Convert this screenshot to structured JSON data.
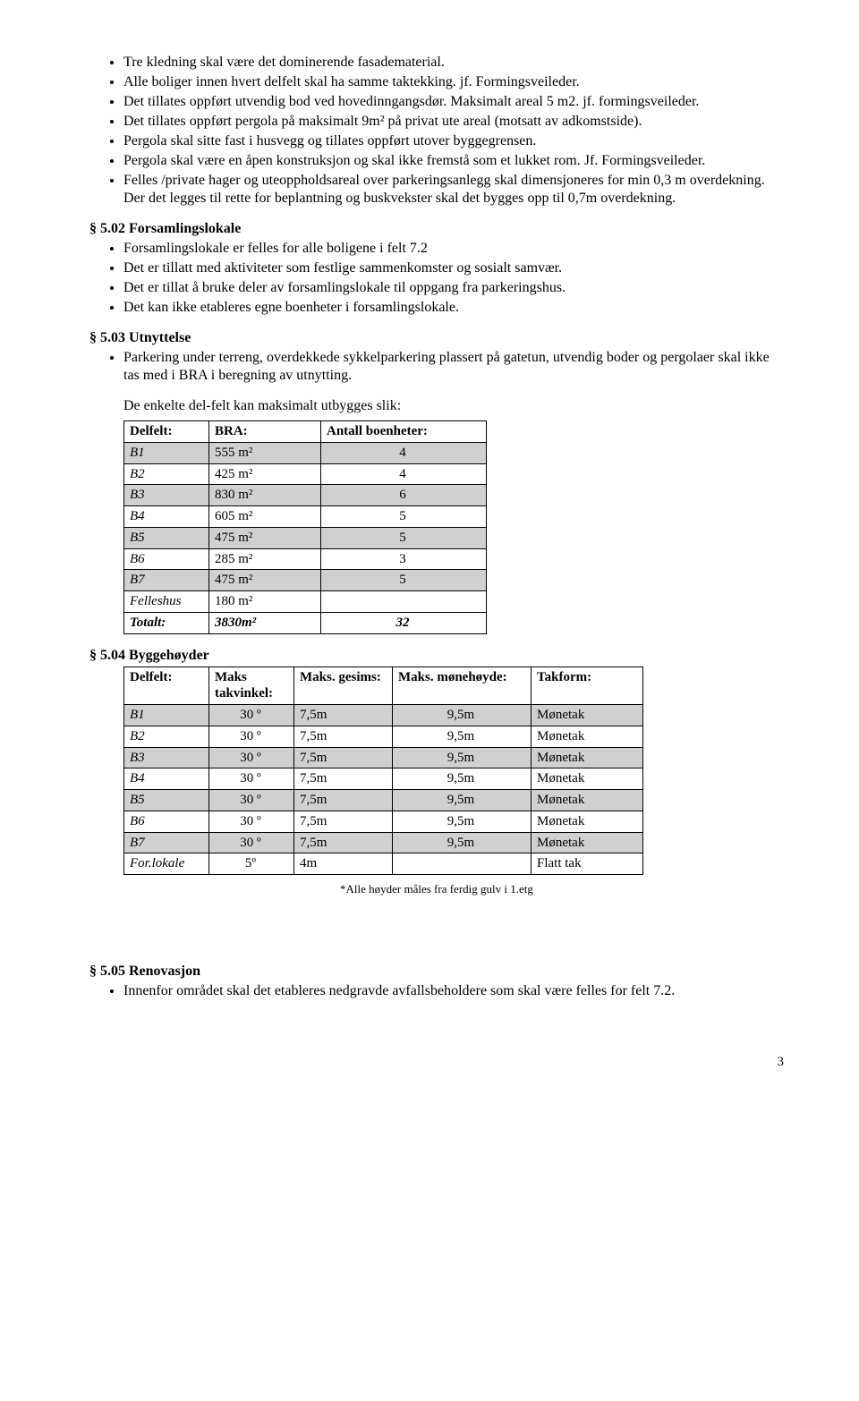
{
  "top_bullets": [
    "Tre kledning skal være det dominerende fasadematerial.",
    "Alle boliger innen hvert delfelt skal ha samme taktekking. jf. Formingsveileder.",
    "Det tillates oppført utvendig bod ved hovedinngangsdør. Maksimalt areal 5 m2. jf. formingsveileder.",
    "Det tillates oppført pergola på maksimalt 9m² på privat ute areal (motsatt av adkomstside).",
    "Pergola skal sitte fast i husvegg og tillates oppført utover byggegrensen.",
    "Pergola skal være en åpen konstruksjon og skal ikke fremstå som et lukket rom. Jf. Formingsveileder.",
    "Felles /private hager og uteoppholdsareal over parkeringsanlegg skal dimensjoneres for min 0,3 m overdekning. Der det legges til rette for beplantning og buskvekster skal det bygges opp til 0,7m overdekning."
  ],
  "s502": {
    "head": "§ 5.02 Forsamlingslokale",
    "bullets": [
      "Forsamlingslokale er felles for alle boligene i felt 7.2",
      "Det er tillatt med aktiviteter som festlige sammenkomster og sosialt samvær.",
      "Det er tillat å bruke deler av forsamlingslokale til oppgang fra parkeringshus.",
      "Det kan ikke etableres egne boenheter i forsamlingslokale."
    ]
  },
  "s503": {
    "head": "§ 5.03 Utnyttelse",
    "bullets": [
      "Parkering under terreng, overdekkede sykkelparkering plassert på gatetun, utvendig boder og pergolaer skal ikke tas med i BRA i beregning av utnytting."
    ],
    "intro": "De enkelte del-felt kan maksimalt utbygges slik:",
    "headers": [
      "Delfelt:",
      "BRA:",
      "Antall boenheter:"
    ],
    "rows": [
      {
        "d": "B1",
        "b": "555 m²",
        "a": "4",
        "shade": true
      },
      {
        "d": "B2",
        "b": "425 m²",
        "a": "4",
        "shade": false
      },
      {
        "d": "B3",
        "b": "830 m²",
        "a": "6",
        "shade": true
      },
      {
        "d": "B4",
        "b": "605 m²",
        "a": "5",
        "shade": false
      },
      {
        "d": "B5",
        "b": "475 m²",
        "a": "5",
        "shade": true
      },
      {
        "d": "B6",
        "b": "285 m²",
        "a": "3",
        "shade": false
      },
      {
        "d": "B7",
        "b": "475 m²",
        "a": "5",
        "shade": true
      },
      {
        "d": "Felleshus",
        "b": "180 m²",
        "a": "",
        "shade": false
      }
    ],
    "total": {
      "d": "Totalt:",
      "b": "3830m²",
      "a": "32"
    }
  },
  "s504": {
    "head": "§ 5.04 Byggehøyder",
    "headers": [
      "Delfelt:",
      "Maks takvinkel:",
      "Maks. gesims:",
      "Maks. mønehøyde:",
      "Takform:"
    ],
    "rows": [
      {
        "d": "B1",
        "v": "30 º",
        "g": "7,5m",
        "m": "9,5m",
        "t": "Mønetak",
        "shade": true
      },
      {
        "d": "B2",
        "v": "30 º",
        "g": "7,5m",
        "m": "9,5m",
        "t": "Mønetak",
        "shade": false
      },
      {
        "d": "B3",
        "v": "30 º",
        "g": "7,5m",
        "m": "9,5m",
        "t": "Mønetak",
        "shade": true
      },
      {
        "d": "B4",
        "v": "30 º",
        "g": "7,5m",
        "m": "9,5m",
        "t": "Mønetak",
        "shade": false
      },
      {
        "d": "B5",
        "v": "30 º",
        "g": "7,5m",
        "m": "9,5m",
        "t": "Mønetak",
        "shade": true
      },
      {
        "d": "B6",
        "v": "30 º",
        "g": "7,5m",
        "m": "9,5m",
        "t": "Mønetak",
        "shade": false
      },
      {
        "d": "B7",
        "v": "30 º",
        "g": "7,5m",
        "m": "9,5m",
        "t": "Mønetak",
        "shade": true
      },
      {
        "d": "For.lokale",
        "v": "5º",
        "g": "4m",
        "m": "",
        "t": "Flatt tak",
        "shade": false
      }
    ],
    "footnote": "*Alle høyder måles fra ferdig gulv i 1.etg"
  },
  "s505": {
    "head": "§ 5.05 Renovasjon",
    "bullets": [
      "Innenfor området skal det etableres nedgravde avfallsbeholdere som skal være felles for felt 7.2."
    ]
  },
  "page": "3"
}
